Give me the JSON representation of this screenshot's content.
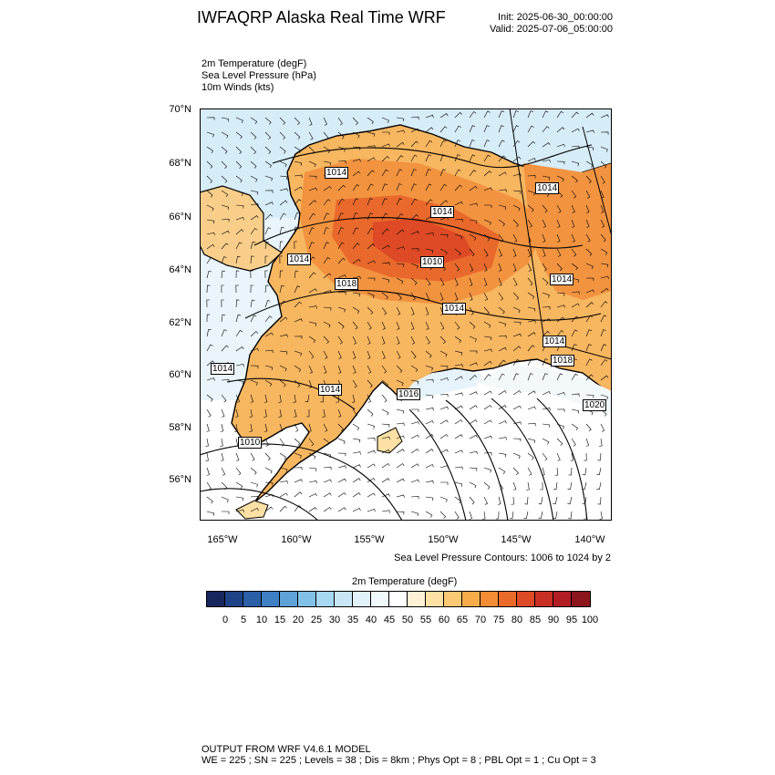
{
  "header": {
    "title": "IWFAQRP Alaska Real Time WRF",
    "init": "Init: 2025-06-30_00:00:00",
    "valid": "Valid: 2025-07-06_05:00:00"
  },
  "fields": [
    "2m Temperature   (degF)",
    "Sea Level Pressure   (hPa)",
    "10m Winds   (kts)"
  ],
  "axes": {
    "lat_labels": [
      "70°N",
      "68°N",
      "66°N",
      "64°N",
      "62°N",
      "60°N",
      "58°N",
      "56°N"
    ],
    "lon_labels": [
      "165°W",
      "160°W",
      "155°W",
      "150°W",
      "145°W",
      "140°W"
    ]
  },
  "pressure_labels": [
    "1014",
    "1014",
    "1014",
    "1014",
    "1010",
    "1014",
    "1014",
    "1014",
    "1018",
    "1014",
    "1018",
    "1014",
    "1016",
    "1010",
    "1020"
  ],
  "contour_note": "Sea Level Pressure Contours: 1006 to 1024 by 2",
  "colorbar": {
    "title": "2m Temperature  (degF)",
    "labels": [
      "0",
      "5",
      "10",
      "15",
      "20",
      "25",
      "30",
      "35",
      "40",
      "45",
      "50",
      "55",
      "60",
      "65",
      "70",
      "75",
      "80",
      "85",
      "90",
      "95",
      "100"
    ],
    "colors": [
      "#18265e",
      "#1f4387",
      "#2c5fa8",
      "#3f7fc4",
      "#5ea2d8",
      "#82c0e8",
      "#a7d8f2",
      "#c7e7f6",
      "#e2f2fa",
      "#f1f8fc",
      "#ffffff",
      "#fef1d6",
      "#fde0a4",
      "#fcc974",
      "#f9ad4a",
      "#f48c34",
      "#ea6a2a",
      "#dd4a25",
      "#c92f24",
      "#b01e23",
      "#8d151c"
    ]
  },
  "footer": {
    "line1": "OUTPUT FROM WRF V4.6.1 MODEL",
    "line2": "WE = 225 ; SN = 225 ; Levels = 38 ; Dis = 8km ; Phys Opt = 8 ; PBL Opt = 1 ; Cu Opt = 3"
  }
}
